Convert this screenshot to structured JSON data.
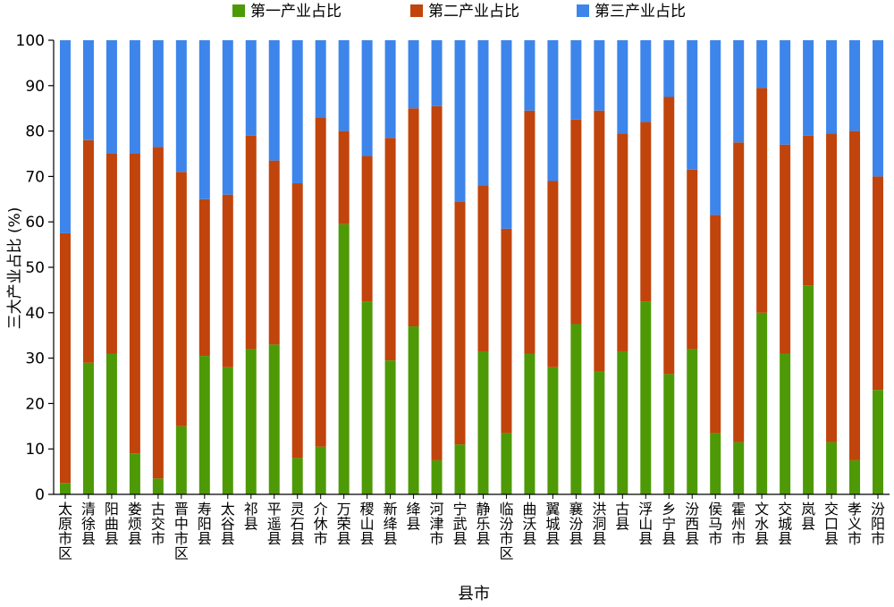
{
  "chart_data": {
    "type": "bar",
    "stacked": true,
    "xlabel": "县市",
    "ylabel": "三大产业占比 (%)",
    "ylim": [
      0,
      100
    ],
    "yticks": [
      0,
      10,
      20,
      30,
      40,
      50,
      60,
      70,
      80,
      90,
      100
    ],
    "grid": false,
    "legend_position": "top",
    "categories": [
      "太原市区",
      "清徐县",
      "阳曲县",
      "娄烦县",
      "古交市",
      "晋中市区",
      "寿阳县",
      "太谷县",
      "祁县",
      "平遥县",
      "灵石县",
      "介休市",
      "万荣县",
      "稷山县",
      "新绛县",
      "绛县",
      "河津市",
      "宁武县",
      "静乐县",
      "临汾市区",
      "曲沃县",
      "翼城县",
      "襄汾县",
      "洪洞县",
      "古县",
      "浮山县",
      "乡宁县",
      "汾西县",
      "侯马市",
      "霍州市",
      "文水县",
      "交城县",
      "岚县",
      "交口县",
      "孝义市",
      "汾阳市"
    ],
    "series": [
      {
        "name": "第一产业占比",
        "color": "#4e9a06",
        "values": [
          2.5,
          29,
          31,
          9,
          3.5,
          15,
          30.5,
          28,
          32,
          33,
          8,
          10.5,
          59.5,
          42.5,
          29.5,
          37,
          7.5,
          11,
          31.5,
          13.5,
          31,
          28,
          37.5,
          27,
          31.5,
          42.5,
          26.5,
          32,
          13.5,
          11.5,
          40,
          31,
          46,
          11.5,
          7.5,
          23
        ]
      },
      {
        "name": "第二产业占比",
        "color": "#c0440b",
        "values": [
          55,
          49,
          44,
          66,
          73,
          56,
          34.5,
          38,
          47,
          40.5,
          60.5,
          72.5,
          20.5,
          32,
          49,
          48,
          78,
          53.5,
          36.5,
          45,
          53.5,
          41,
          45,
          57.5,
          48,
          39.5,
          61,
          39.5,
          48,
          66,
          49.5,
          46,
          33,
          68,
          72.5,
          47
        ]
      },
      {
        "name": "第三产业占比",
        "color": "#3d85ea",
        "values": [
          42.5,
          22,
          25,
          25,
          23.5,
          29,
          35,
          34,
          21,
          26.5,
          31.5,
          17,
          20,
          25.5,
          21.5,
          15,
          14.5,
          35.5,
          32,
          41.5,
          15.5,
          31,
          17.5,
          15.5,
          20.5,
          18,
          12.5,
          28.5,
          38.5,
          22.5,
          10.5,
          23,
          21,
          21,
          20,
          30
        ]
      }
    ]
  }
}
